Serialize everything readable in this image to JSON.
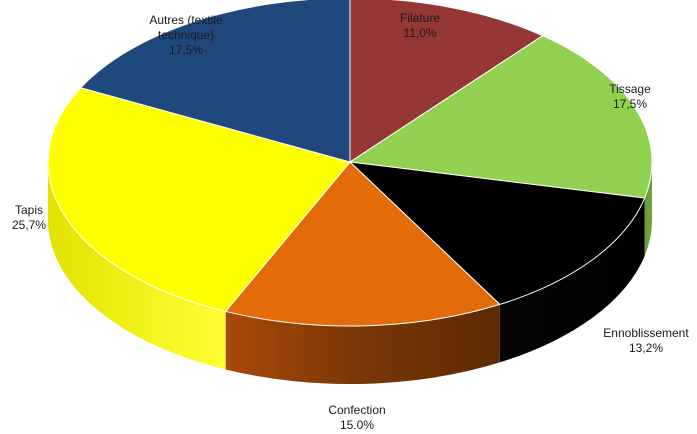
{
  "chart_data": {
    "type": "pie",
    "title": "",
    "slices": [
      {
        "name": "Filature",
        "value_label": "11,0%",
        "value": 11.0,
        "color": "#953735"
      },
      {
        "name": "Tissage",
        "value_label": "17,5%",
        "value": 17.5,
        "color": "#92d050"
      },
      {
        "name": "Ennoblissement",
        "value_label": "13,2%",
        "value": 13.2,
        "color": "#000000"
      },
      {
        "name": "Confection",
        "value_label": "15.0%",
        "value": 15.0,
        "color": "#e36c09"
      },
      {
        "name": "Tapis",
        "value_label": "25,7%",
        "value": 25.7,
        "color": "#ffff00"
      },
      {
        "name": "Autres (textile technique)",
        "name_lines": [
          "Autres (textile",
          "technique)"
        ],
        "value_label": "17,5%",
        "value": 17.5,
        "color": "#1f497d"
      }
    ]
  }
}
